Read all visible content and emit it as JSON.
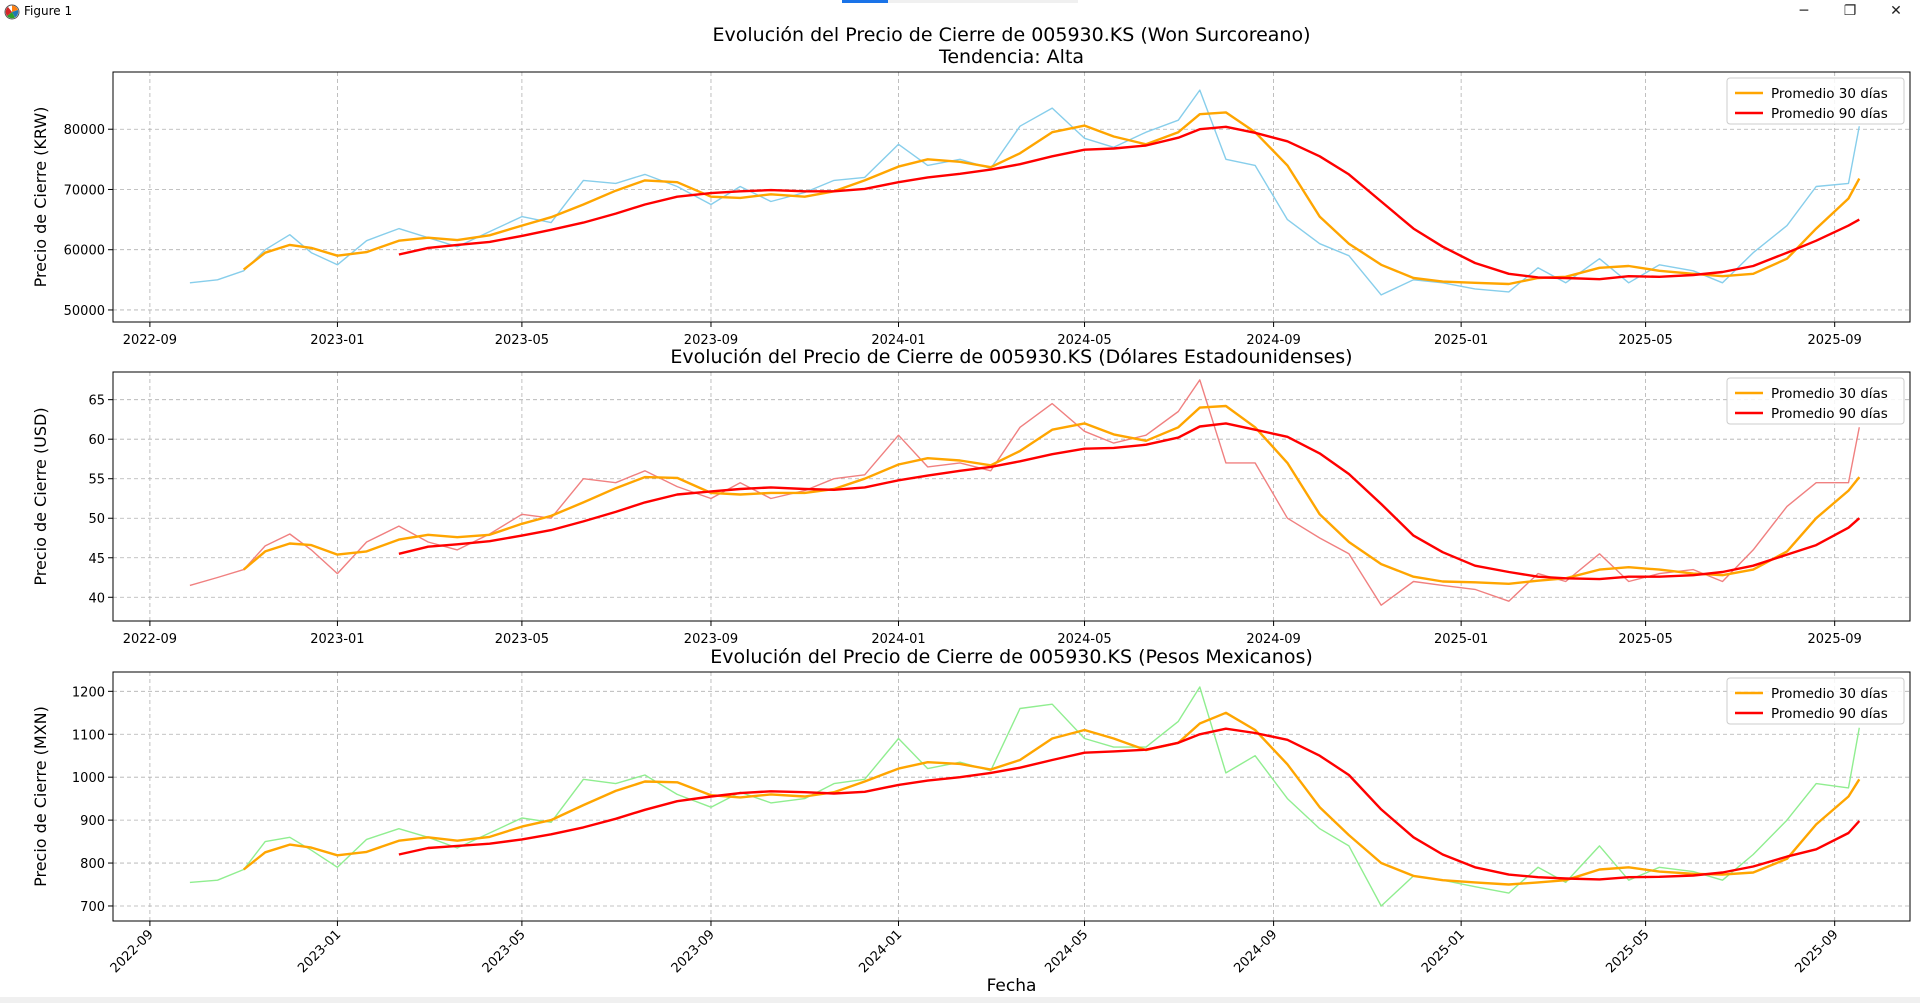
{
  "window": {
    "title": "Figure 1",
    "controls": {
      "minimize": "─",
      "maximize": "❐",
      "close": "✕"
    }
  },
  "colors": {
    "krw": "#87ceeb",
    "usd": "#f08080",
    "mxn": "#90ee90",
    "ma30": "#ffa500",
    "ma90": "#ff0000",
    "grid": "#b0b0b0"
  },
  "chart_data": [
    {
      "type": "line",
      "title": "Evolución del Precio de Cierre de 005930.KS (Won Surcoreano)",
      "subtitle": "Tendencia: Alta",
      "ylabel": "Precio de Cierre (KRW)",
      "xlabel": "",
      "ylim": [
        48000,
        89500
      ],
      "yticks": [
        50000,
        60000,
        70000,
        80000
      ],
      "ytick_labels": [
        "50000",
        "60000",
        "70000",
        "80000"
      ],
      "xticks": [
        "2022-09",
        "2023-01",
        "2023-05",
        "2023-09",
        "2024-01",
        "2024-05",
        "2024-09",
        "2025-01",
        "2025-05",
        "2025-09"
      ],
      "grid": true,
      "legend": "top-right",
      "x": [
        "2022-09-27",
        "2022-10-15",
        "2022-11-01",
        "2022-11-15",
        "2022-12-01",
        "2022-12-15",
        "2023-01-01",
        "2023-01-20",
        "2023-02-10",
        "2023-03-01",
        "2023-03-20",
        "2023-04-10",
        "2023-05-01",
        "2023-05-20",
        "2023-06-10",
        "2023-07-01",
        "2023-07-20",
        "2023-08-10",
        "2023-09-01",
        "2023-09-20",
        "2023-10-10",
        "2023-11-01",
        "2023-11-20",
        "2023-12-10",
        "2024-01-01",
        "2024-01-20",
        "2024-02-10",
        "2024-03-01",
        "2024-03-20",
        "2024-04-10",
        "2024-05-01",
        "2024-05-20",
        "2024-06-10",
        "2024-07-01",
        "2024-07-15",
        "2024-08-01",
        "2024-08-20",
        "2024-09-10",
        "2024-10-01",
        "2024-10-20",
        "2024-11-10",
        "2024-12-01",
        "2024-12-20",
        "2025-01-10",
        "2025-02-01",
        "2025-02-20",
        "2025-03-10",
        "2025-04-01",
        "2025-04-20",
        "2025-05-10",
        "2025-06-01",
        "2025-06-20",
        "2025-07-10",
        "2025-08-01",
        "2025-08-20",
        "2025-09-10",
        "2025-09-17"
      ],
      "series": [
        {
          "name": "",
          "values": [
            54500,
            55000,
            56500,
            60000,
            62500,
            59500,
            57500,
            61500,
            63500,
            62000,
            60500,
            63000,
            65500,
            64500,
            71500,
            71000,
            72500,
            70500,
            67500,
            70500,
            68000,
            69500,
            71500,
            72000,
            77500,
            74000,
            75000,
            73500,
            80500,
            83500,
            78500,
            77000,
            79500,
            81500,
            86500,
            75000,
            74000,
            65000,
            61000,
            59000,
            52500,
            55000,
            54500,
            53500,
            53000,
            57000,
            54500,
            58500,
            54500,
            57500,
            56500,
            54500,
            59500,
            64000,
            70500,
            71000,
            80500
          ]
        },
        {
          "name": "Promedio 30 días",
          "values": [
            null,
            null,
            56700,
            59500,
            60800,
            60300,
            59000,
            59600,
            61500,
            62000,
            61600,
            62400,
            64000,
            65400,
            67500,
            69800,
            71500,
            71200,
            68800,
            68600,
            69200,
            68800,
            69700,
            71500,
            73800,
            75000,
            74600,
            73700,
            76000,
            79500,
            80600,
            78800,
            77500,
            79500,
            82500,
            82800,
            79500,
            74000,
            65500,
            61000,
            57500,
            55300,
            54700,
            54500,
            54300,
            55300,
            55500,
            57000,
            57300,
            56500,
            56000,
            55600,
            56000,
            58500,
            63500,
            68500,
            71800
          ]
        },
        {
          "name": "Promedio 90 días",
          "values": [
            null,
            null,
            null,
            null,
            null,
            null,
            null,
            null,
            59200,
            60300,
            60800,
            61300,
            62300,
            63300,
            64500,
            66000,
            67500,
            68800,
            69400,
            69700,
            69900,
            69700,
            69700,
            70100,
            71200,
            72000,
            72600,
            73300,
            74200,
            75500,
            76600,
            76800,
            77300,
            78600,
            80000,
            80400,
            79400,
            78000,
            75500,
            72500,
            68000,
            63500,
            60500,
            57800,
            56000,
            55400,
            55300,
            55100,
            55600,
            55500,
            55800,
            56300,
            57300,
            59500,
            61500,
            64000,
            65000
          ]
        }
      ]
    },
    {
      "type": "line",
      "title": "Evolución del Precio de Cierre de 005930.KS (Dólares Estadounidenses)",
      "ylabel": "Precio de Cierre (USD)",
      "xlabel": "",
      "ylim": [
        37,
        68.5
      ],
      "yticks": [
        40,
        45,
        50,
        55,
        60,
        65
      ],
      "ytick_labels": [
        "40",
        "45",
        "50",
        "55",
        "60",
        "65"
      ],
      "xticks": [
        "2022-09",
        "2023-01",
        "2023-05",
        "2023-09",
        "2024-01",
        "2024-05",
        "2024-09",
        "2025-01",
        "2025-05",
        "2025-09"
      ],
      "grid": true,
      "legend": "top-right",
      "x": [
        "2022-09-27",
        "2022-10-15",
        "2022-11-01",
        "2022-11-15",
        "2022-12-01",
        "2022-12-15",
        "2023-01-01",
        "2023-01-20",
        "2023-02-10",
        "2023-03-01",
        "2023-03-20",
        "2023-04-10",
        "2023-05-01",
        "2023-05-20",
        "2023-06-10",
        "2023-07-01",
        "2023-07-20",
        "2023-08-10",
        "2023-09-01",
        "2023-09-20",
        "2023-10-10",
        "2023-11-01",
        "2023-11-20",
        "2023-12-10",
        "2024-01-01",
        "2024-01-20",
        "2024-02-10",
        "2024-03-01",
        "2024-03-20",
        "2024-04-10",
        "2024-05-01",
        "2024-05-20",
        "2024-06-10",
        "2024-07-01",
        "2024-07-15",
        "2024-08-01",
        "2024-08-20",
        "2024-09-10",
        "2024-10-01",
        "2024-10-20",
        "2024-11-10",
        "2024-12-01",
        "2024-12-20",
        "2025-01-10",
        "2025-02-01",
        "2025-02-20",
        "2025-03-10",
        "2025-04-01",
        "2025-04-20",
        "2025-05-10",
        "2025-06-01",
        "2025-06-20",
        "2025-07-10",
        "2025-08-01",
        "2025-08-20",
        "2025-09-10",
        "2025-09-17"
      ],
      "series": [
        {
          "name": "",
          "values": [
            41.5,
            42.5,
            43.5,
            46.5,
            48.0,
            46.0,
            43.0,
            47.0,
            49.0,
            47.0,
            46.0,
            48.0,
            50.5,
            50.0,
            55.0,
            54.5,
            56.0,
            54.0,
            52.5,
            54.5,
            52.5,
            53.5,
            55.0,
            55.5,
            60.5,
            56.5,
            57.0,
            56.0,
            61.5,
            64.5,
            61.0,
            59.5,
            60.5,
            63.5,
            67.5,
            57.0,
            57.0,
            50.0,
            47.5,
            45.5,
            39.0,
            42.0,
            41.5,
            41.0,
            39.5,
            43.0,
            42.0,
            45.5,
            42.0,
            43.0,
            43.5,
            42.0,
            46.0,
            51.5,
            54.5,
            54.5,
            61.5
          ]
        },
        {
          "name": "Promedio 30 días",
          "values": [
            null,
            null,
            43.5,
            45.8,
            46.8,
            46.6,
            45.4,
            45.8,
            47.3,
            47.9,
            47.6,
            47.9,
            49.3,
            50.3,
            52.0,
            53.8,
            55.2,
            55.1,
            53.2,
            53.0,
            53.2,
            53.2,
            53.7,
            55.0,
            56.8,
            57.6,
            57.3,
            56.7,
            58.5,
            61.2,
            62.0,
            60.6,
            59.8,
            61.5,
            64.0,
            64.2,
            61.5,
            57.0,
            50.5,
            47.0,
            44.2,
            42.6,
            42.0,
            41.9,
            41.7,
            42.1,
            42.4,
            43.5,
            43.8,
            43.5,
            43.0,
            42.8,
            43.5,
            45.8,
            50.0,
            53.5,
            55.2
          ]
        },
        {
          "name": "Promedio 90 días",
          "values": [
            null,
            null,
            null,
            null,
            null,
            null,
            null,
            null,
            45.5,
            46.4,
            46.7,
            47.1,
            47.8,
            48.5,
            49.6,
            50.8,
            52.0,
            53.0,
            53.4,
            53.7,
            53.9,
            53.7,
            53.6,
            53.9,
            54.8,
            55.4,
            56.0,
            56.5,
            57.2,
            58.1,
            58.8,
            58.9,
            59.3,
            60.2,
            61.6,
            62.0,
            61.2,
            60.3,
            58.2,
            55.6,
            51.8,
            47.8,
            45.7,
            44.0,
            43.2,
            42.6,
            42.4,
            42.3,
            42.6,
            42.6,
            42.8,
            43.2,
            44.0,
            45.4,
            46.6,
            48.8,
            50.0
          ]
        }
      ]
    },
    {
      "type": "line",
      "title": "Evolución del Precio de Cierre de 005930.KS (Pesos Mexicanos)",
      "ylabel": "Precio de Cierre (MXN)",
      "xlabel": "Fecha",
      "ylim": [
        665,
        1245
      ],
      "yticks": [
        700,
        800,
        900,
        1000,
        1100,
        1200
      ],
      "ytick_labels": [
        "700",
        "800",
        "900",
        "1000",
        "1100",
        "1200"
      ],
      "xticks": [
        "2022-09",
        "2023-01",
        "2023-05",
        "2023-09",
        "2024-01",
        "2024-05",
        "2024-09",
        "2025-01",
        "2025-05",
        "2025-09"
      ],
      "grid": true,
      "legend": "top-right",
      "x": [
        "2022-09-27",
        "2022-10-15",
        "2022-11-01",
        "2022-11-15",
        "2022-12-01",
        "2022-12-15",
        "2023-01-01",
        "2023-01-20",
        "2023-02-10",
        "2023-03-01",
        "2023-03-20",
        "2023-04-10",
        "2023-05-01",
        "2023-05-20",
        "2023-06-10",
        "2023-07-01",
        "2023-07-20",
        "2023-08-10",
        "2023-09-01",
        "2023-09-20",
        "2023-10-10",
        "2023-11-01",
        "2023-11-20",
        "2023-12-10",
        "2024-01-01",
        "2024-01-20",
        "2024-02-10",
        "2024-03-01",
        "2024-03-20",
        "2024-04-10",
        "2024-05-01",
        "2024-05-20",
        "2024-06-10",
        "2024-07-01",
        "2024-07-15",
        "2024-08-01",
        "2024-08-20",
        "2024-09-10",
        "2024-10-01",
        "2024-10-20",
        "2024-11-10",
        "2024-12-01",
        "2024-12-20",
        "2025-01-10",
        "2025-02-01",
        "2025-02-20",
        "2025-03-10",
        "2025-04-01",
        "2025-04-20",
        "2025-05-10",
        "2025-06-01",
        "2025-06-20",
        "2025-07-10",
        "2025-08-01",
        "2025-08-20",
        "2025-09-10",
        "2025-09-17"
      ],
      "series": [
        {
          "name": "",
          "values": [
            755,
            760,
            785,
            850,
            860,
            830,
            790,
            855,
            880,
            860,
            835,
            870,
            905,
            895,
            995,
            985,
            1005,
            960,
            930,
            965,
            940,
            950,
            985,
            995,
            1090,
            1020,
            1035,
            1015,
            1160,
            1170,
            1090,
            1070,
            1070,
            1130,
            1210,
            1010,
            1050,
            950,
            880,
            840,
            700,
            770,
            760,
            745,
            730,
            790,
            755,
            840,
            760,
            790,
            780,
            760,
            820,
            900,
            985,
            975,
            1115
          ]
        },
        {
          "name": "Promedio 30 días",
          "values": [
            null,
            null,
            785,
            825,
            843,
            836,
            818,
            826,
            852,
            860,
            852,
            861,
            885,
            900,
            935,
            968,
            990,
            988,
            958,
            953,
            960,
            955,
            965,
            990,
            1020,
            1035,
            1031,
            1018,
            1040,
            1090,
            1110,
            1090,
            1063,
            1080,
            1125,
            1150,
            1110,
            1030,
            930,
            865,
            800,
            770,
            760,
            755,
            750,
            755,
            760,
            785,
            790,
            780,
            775,
            773,
            778,
            810,
            890,
            955,
            995
          ]
        },
        {
          "name": "Promedio 90 días",
          "values": [
            null,
            null,
            null,
            null,
            null,
            null,
            null,
            null,
            820,
            835,
            840,
            845,
            855,
            867,
            883,
            903,
            924,
            944,
            955,
            963,
            967,
            965,
            962,
            966,
            982,
            992,
            1000,
            1010,
            1022,
            1040,
            1057,
            1060,
            1064,
            1080,
            1100,
            1113,
            1103,
            1087,
            1050,
            1005,
            925,
            860,
            820,
            790,
            773,
            767,
            764,
            762,
            767,
            768,
            771,
            778,
            792,
            815,
            832,
            870,
            898
          ]
        }
      ]
    }
  ]
}
